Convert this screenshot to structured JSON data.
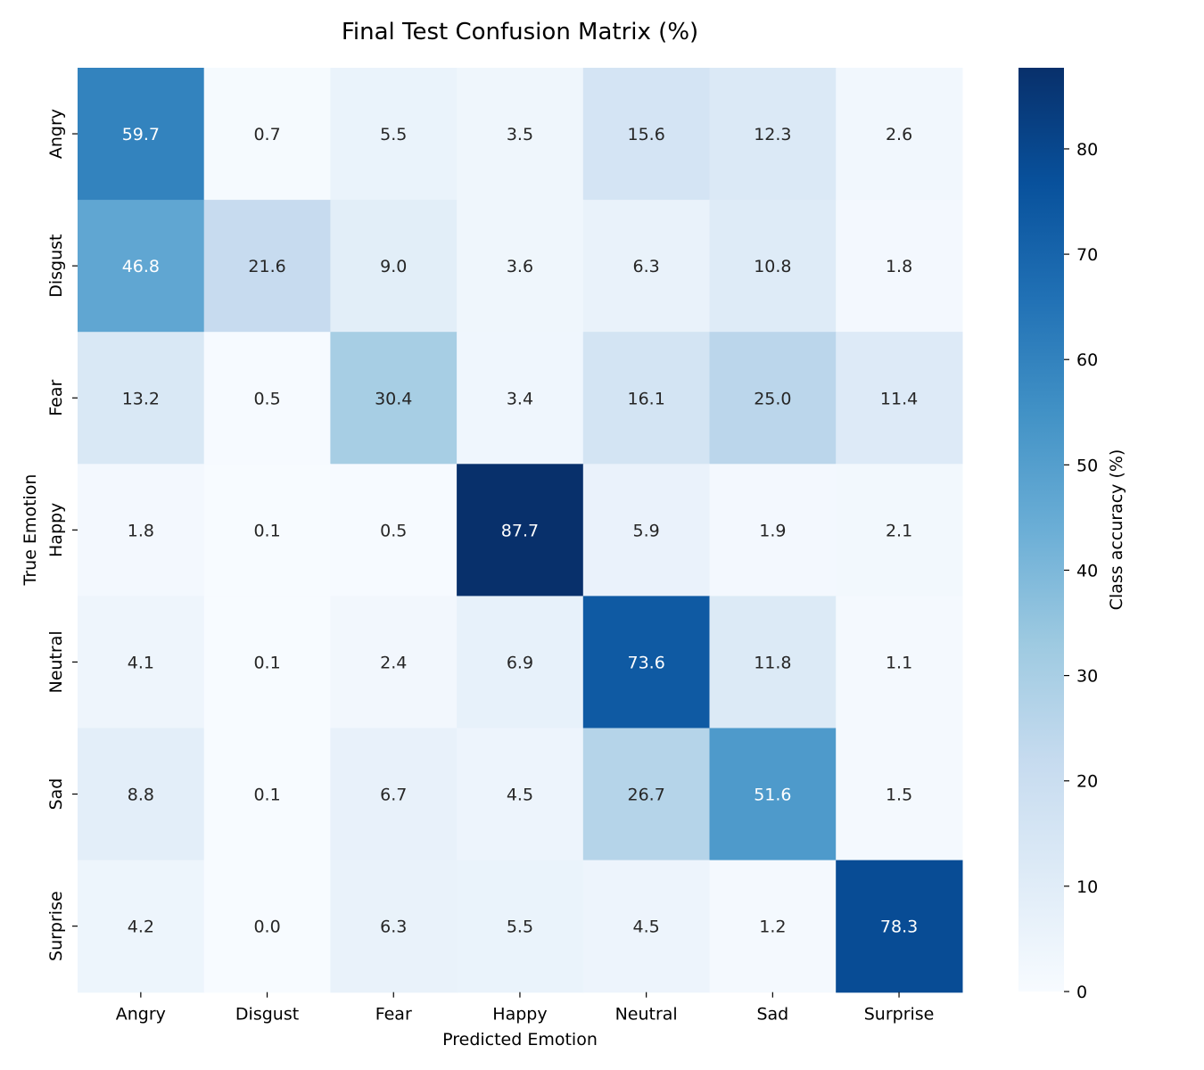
{
  "chart_data": {
    "type": "heatmap",
    "title": "Final Test Confusion Matrix (%)",
    "xlabel": "Predicted Emotion",
    "ylabel": "True Emotion",
    "x_categories": [
      "Angry",
      "Disgust",
      "Fear",
      "Happy",
      "Neutral",
      "Sad",
      "Surprise"
    ],
    "y_categories": [
      "Angry",
      "Disgust",
      "Fear",
      "Happy",
      "Neutral",
      "Sad",
      "Surprise"
    ],
    "values": [
      [
        59.7,
        0.7,
        5.5,
        3.5,
        15.6,
        12.3,
        2.6
      ],
      [
        46.8,
        21.6,
        9.0,
        3.6,
        6.3,
        10.8,
        1.8
      ],
      [
        13.2,
        0.5,
        30.4,
        3.4,
        16.1,
        25.0,
        11.4
      ],
      [
        1.8,
        0.1,
        0.5,
        87.7,
        5.9,
        1.9,
        2.1
      ],
      [
        4.1,
        0.1,
        2.4,
        6.9,
        73.6,
        11.8,
        1.1
      ],
      [
        8.8,
        0.1,
        6.7,
        4.5,
        26.7,
        51.6,
        1.5
      ],
      [
        4.2,
        0.0,
        6.3,
        5.5,
        4.5,
        1.2,
        78.3
      ]
    ],
    "colormap": "Blues",
    "value_range": [
      0,
      87.7
    ],
    "colorbar": {
      "label": "Class accuracy (%)",
      "ticks": [
        0,
        10,
        20,
        30,
        40,
        50,
        60,
        70,
        80
      ]
    }
  }
}
